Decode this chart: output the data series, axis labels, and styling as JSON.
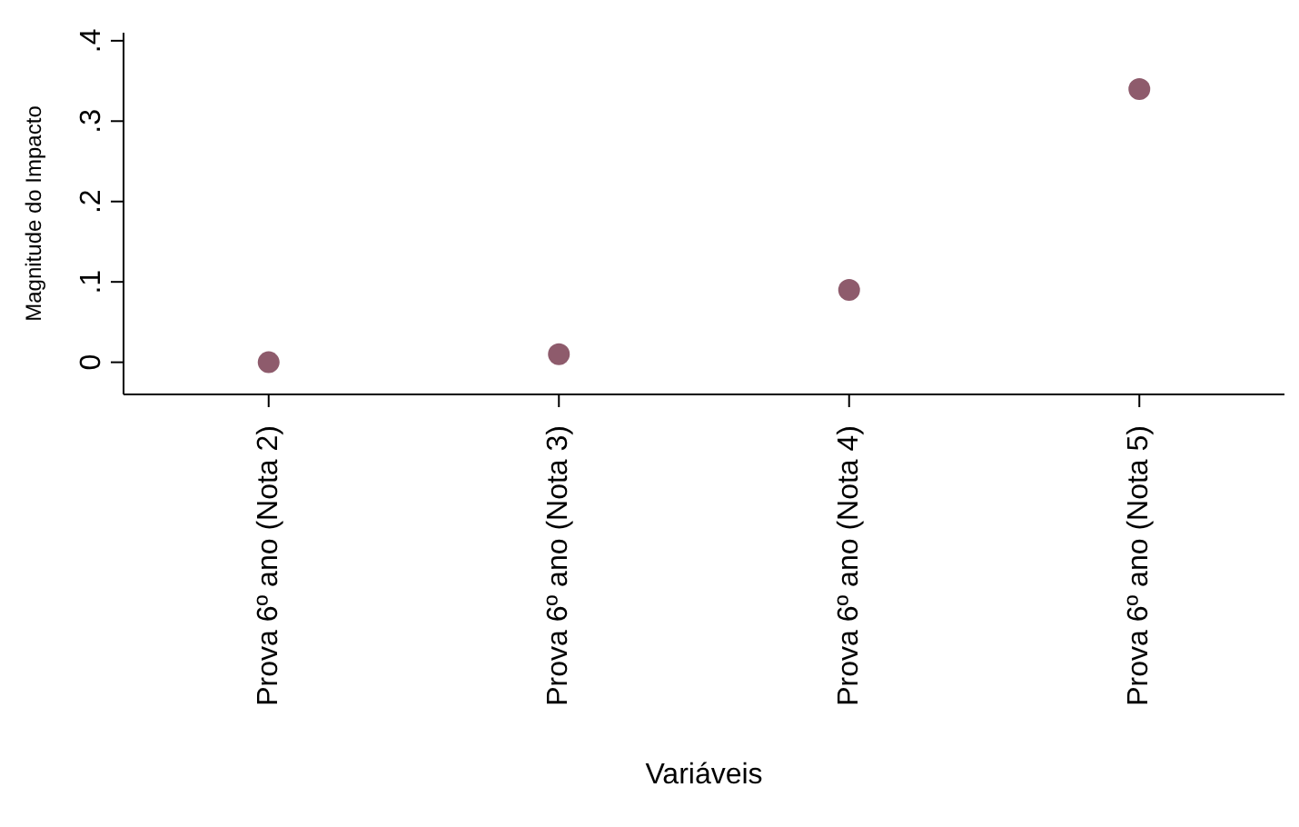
{
  "chart_data": {
    "type": "scatter",
    "xlabel": "Variáveis",
    "ylabel": "Magnitude do Impacto",
    "categories": [
      "Prova 6º ano (Nota 2)",
      "Prova 6º ano (Nota 3)",
      "Prova 6º ano (Nota 4)",
      "Prova 6º ano (Nota 5)"
    ],
    "series": [
      {
        "color": "#8e5b6c",
        "values": [
          0.0,
          0.01,
          0.09,
          0.34
        ]
      }
    ],
    "ylim": [
      -0.04,
      0.41
    ],
    "yticks": [
      {
        "value": 0,
        "label": "0"
      },
      {
        "value": 0.1,
        "label": ".1"
      },
      {
        "value": 0.2,
        "label": ".2"
      },
      {
        "value": 0.3,
        "label": ".3"
      },
      {
        "value": 0.4,
        "label": ".4"
      }
    ],
    "grid": false,
    "legend": false,
    "marker": "circle"
  }
}
